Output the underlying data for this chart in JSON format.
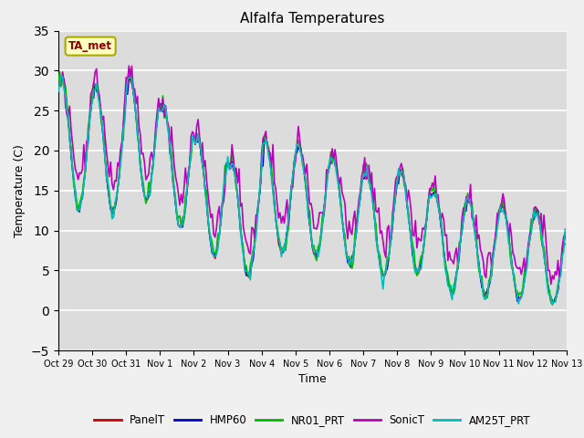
{
  "title": "Alfalfa Temperatures",
  "xlabel": "Time",
  "ylabel": "Temperature (C)",
  "ylim": [
    -5,
    35
  ],
  "yticks": [
    -5,
    0,
    5,
    10,
    15,
    20,
    25,
    30,
    35
  ],
  "xtick_labels": [
    "Oct 29",
    "Oct 30",
    "Oct 31",
    "Nov 1",
    "Nov 2",
    "Nov 3",
    "Nov 4",
    "Nov 5",
    "Nov 6",
    "Nov 7",
    "Nov 8",
    "Nov 9",
    "Nov 10",
    "Nov 11",
    "Nov 12",
    "Nov 13"
  ],
  "annotation_text": "TA_met",
  "annotation_color": "#8B0000",
  "annotation_bg": "#FFFFC0",
  "bg_color": "#DCDCDC",
  "fig_bg": "#F0F0F0",
  "series": {
    "PanelT": {
      "color": "#CC0000",
      "lw": 1.0
    },
    "HMP60": {
      "color": "#0000CC",
      "lw": 1.0
    },
    "NR01_PRT": {
      "color": "#00BB00",
      "lw": 1.2
    },
    "SonicT": {
      "color": "#BB00BB",
      "lw": 1.2
    },
    "AM25T_PRT": {
      "color": "#00BBBB",
      "lw": 1.2
    }
  },
  "hours_per_day": 24,
  "n_days": 15,
  "seed": 1234
}
